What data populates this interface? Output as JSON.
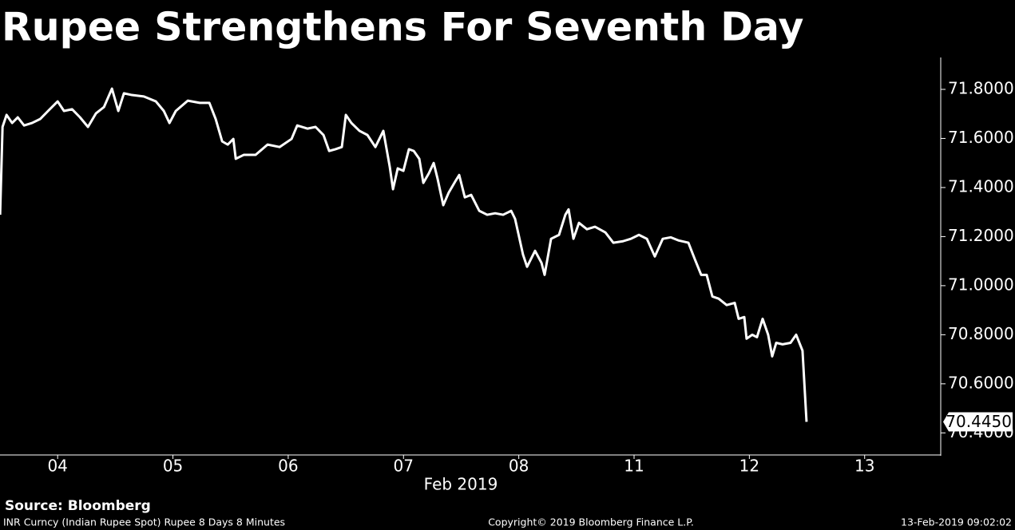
{
  "chart_data": {
    "type": "line",
    "title": "Rupee Strengthens For Seventh Day",
    "x_label": "Feb 2019",
    "source": "Source: Bloomberg",
    "footnotes": [
      "INR Curncy (Indian Rupee Spot) Rupee 8 Days 8 Minutes",
      "Copyright© 2019 Bloomberg Finance L.P.",
      "13-Feb-2019 09:02:02"
    ],
    "color": "#ffffff",
    "xlim": [
      -0.5,
      7.66
    ],
    "xticks": [
      {
        "value": 0,
        "label": "04"
      },
      {
        "value": 1,
        "label": "05"
      },
      {
        "value": 2,
        "label": "06"
      },
      {
        "value": 3,
        "label": "07"
      },
      {
        "value": 4,
        "label": "08"
      },
      {
        "value": 5,
        "label": "11"
      },
      {
        "value": 6,
        "label": "12"
      },
      {
        "value": 7,
        "label": "13"
      }
    ],
    "ylim": [
      70.31,
      71.93
    ],
    "yticks": [
      {
        "value": 70.4,
        "label": "70.4000"
      },
      {
        "value": 70.6,
        "label": "70.6000"
      },
      {
        "value": 70.8,
        "label": "70.8000"
      },
      {
        "value": 71.0,
        "label": "71.0000"
      },
      {
        "value": 71.2,
        "label": "71.2000"
      },
      {
        "value": 71.4,
        "label": "71.4000"
      },
      {
        "value": 71.6,
        "label": "71.6000"
      },
      {
        "value": 71.8,
        "label": "71.8000"
      }
    ],
    "x": [
      -0.499,
      -0.478,
      -0.443,
      -0.395,
      -0.346,
      -0.291,
      -0.222,
      -0.152,
      -0.083,
      0,
      0.055,
      0.125,
      0.194,
      0.263,
      0.332,
      0.402,
      0.471,
      0.526,
      0.575,
      0.644,
      0.748,
      0.852,
      0.921,
      0.97,
      1.025,
      1.129,
      1.233,
      1.316,
      1.371,
      1.427,
      1.475,
      1.524,
      1.545,
      1.614,
      1.717,
      1.821,
      1.925,
      2.029,
      2.078,
      2.168,
      2.237,
      2.306,
      2.355,
      2.41,
      2.465,
      2.5,
      2.548,
      2.618,
      2.687,
      2.756,
      2.825,
      2.881,
      2.909,
      2.95,
      2.999,
      3.047,
      3.089,
      3.137,
      3.172,
      3.22,
      3.262,
      3.296,
      3.345,
      3.393,
      3.449,
      3.483,
      3.532,
      3.587,
      3.657,
      3.726,
      3.795,
      3.864,
      3.934,
      3.968,
      4.037,
      4.072,
      4.141,
      4.197,
      4.224,
      4.28,
      4.349,
      4.404,
      4.432,
      4.474,
      4.522,
      4.591,
      4.661,
      4.751,
      4.82,
      4.903,
      4.972,
      5.042,
      5.111,
      5.18,
      5.249,
      5.319,
      5.388,
      5.471,
      5.526,
      5.582,
      5.63,
      5.679,
      5.734,
      5.803,
      5.873,
      5.907,
      5.956,
      5.976,
      6.025,
      6.066,
      6.115,
      6.163,
      6.198,
      6.233,
      6.288,
      6.357,
      6.406,
      6.461,
      6.496
    ],
    "values": [
      71.289,
      71.647,
      71.696,
      71.663,
      71.686,
      71.653,
      71.663,
      71.679,
      71.712,
      71.751,
      71.712,
      71.719,
      71.686,
      71.647,
      71.702,
      71.728,
      71.803,
      71.712,
      71.784,
      71.777,
      71.771,
      71.751,
      71.712,
      71.663,
      71.712,
      71.754,
      71.745,
      71.745,
      71.679,
      71.588,
      71.575,
      71.598,
      71.517,
      71.533,
      71.533,
      71.575,
      71.565,
      71.598,
      71.653,
      71.64,
      71.647,
      71.614,
      71.549,
      71.556,
      71.565,
      71.696,
      71.663,
      71.631,
      71.614,
      71.565,
      71.631,
      71.484,
      71.393,
      71.478,
      71.468,
      71.556,
      71.549,
      71.517,
      71.419,
      71.458,
      71.5,
      71.435,
      71.328,
      71.38,
      71.425,
      71.451,
      71.36,
      71.37,
      71.305,
      71.289,
      71.295,
      71.289,
      71.305,
      71.272,
      71.126,
      71.077,
      71.142,
      71.093,
      71.044,
      71.191,
      71.207,
      71.289,
      71.311,
      71.191,
      71.256,
      71.23,
      71.24,
      71.217,
      71.175,
      71.181,
      71.191,
      71.207,
      71.191,
      71.119,
      71.191,
      71.197,
      71.184,
      71.175,
      71.109,
      71.044,
      71.044,
      70.956,
      70.947,
      70.921,
      70.93,
      70.865,
      70.872,
      70.784,
      70.8,
      70.79,
      70.865,
      70.8,
      70.712,
      70.767,
      70.761,
      70.767,
      70.8,
      70.735,
      70.445
    ],
    "value_labels": [
      null,
      null,
      null,
      null,
      null,
      null,
      null,
      null,
      null,
      null,
      null,
      null,
      null,
      null,
      null,
      null,
      null,
      null,
      null,
      null,
      null,
      null,
      null,
      null,
      null,
      null,
      null,
      null,
      null,
      null,
      null,
      null,
      null,
      null,
      null,
      null,
      null,
      null,
      null,
      null,
      null,
      null,
      null,
      null,
      null,
      null,
      null,
      null,
      null,
      null,
      null,
      null,
      null,
      null,
      null,
      null,
      null,
      null,
      null,
      null,
      null,
      null,
      null,
      null,
      null,
      null,
      null,
      null,
      null,
      null,
      null,
      null,
      null,
      null,
      null,
      null,
      null,
      null,
      null,
      null,
      null,
      null,
      null,
      null,
      null,
      null,
      null,
      null,
      null,
      null,
      null,
      null,
      null,
      null,
      null,
      null,
      null,
      null,
      null,
      null,
      null,
      null,
      null,
      null,
      null,
      null,
      null,
      null,
      null,
      null,
      null,
      null,
      null,
      null,
      null,
      null,
      null,
      null,
      "70.4450"
    ]
  }
}
